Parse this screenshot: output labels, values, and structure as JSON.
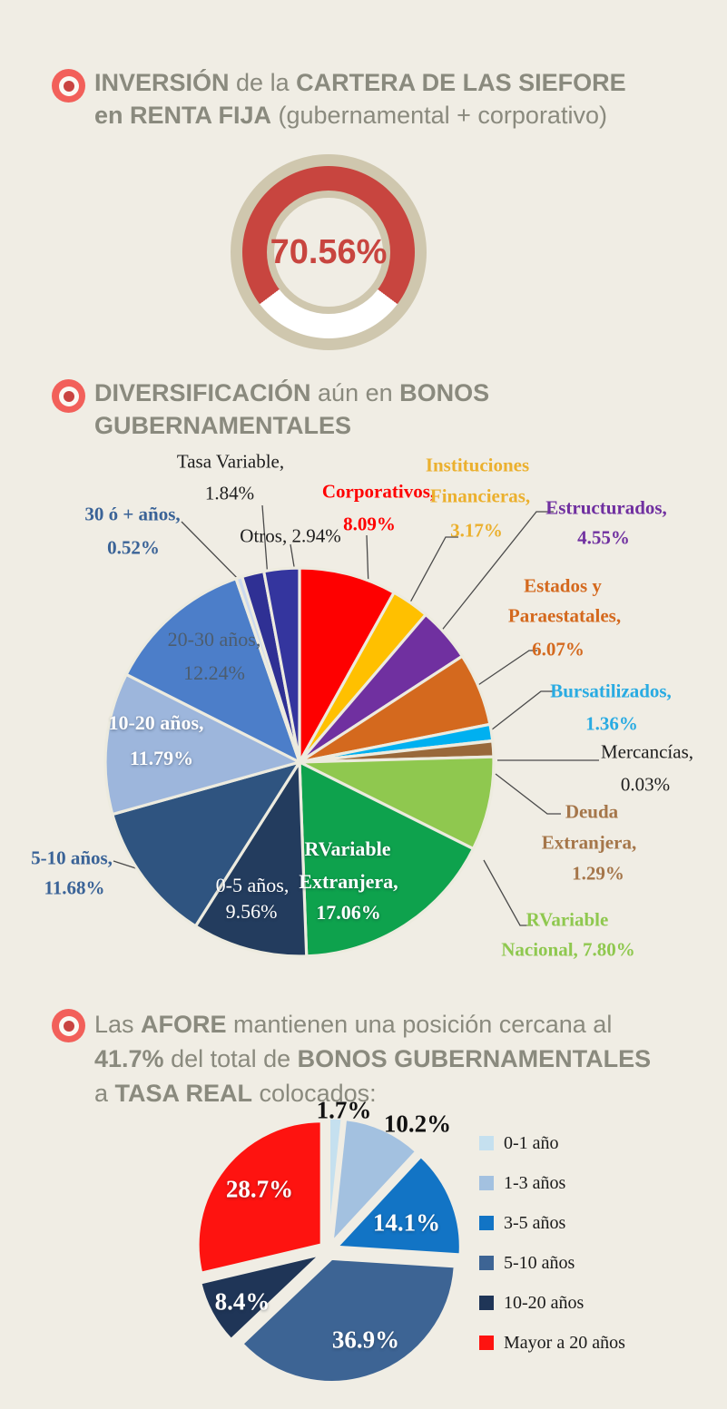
{
  "theme": {
    "background": "#F0EDE4",
    "heading_color": "#8A8A7E",
    "bullet_outer": "#F2605A",
    "bullet_inner_dot": "#C94440",
    "leader_line_color": "#4A4A4A",
    "slice_separator": "#EDEBDF"
  },
  "headers": [
    {
      "lines": [
        [
          {
            "t": "INVERSIÓN",
            "b": true
          },
          {
            "t": " de la ",
            "b": false
          },
          {
            "t": "CARTERA DE LAS SIEFORE",
            "b": true
          }
        ],
        [
          {
            "t": "en RENTA FIJA",
            "b": true
          },
          {
            "t": " (gubernamental + corporativo)",
            "b": false
          }
        ]
      ]
    },
    {
      "lines": [
        [
          {
            "t": "DIVERSIFICACIÓN",
            "b": true
          },
          {
            "t": " aún en ",
            "b": false
          },
          {
            "t": "BONOS",
            "b": true
          }
        ],
        [
          {
            "t": "GUBERNAMENTALES",
            "b": true
          }
        ]
      ]
    },
    {
      "lines": [
        [
          {
            "t": "Las ",
            "b": false
          },
          {
            "t": "AFORE",
            "b": true
          },
          {
            "t": " mantienen una posición cercana al",
            "b": false
          }
        ],
        [
          {
            "t": "41.7%",
            "b": true
          },
          {
            "t": " del total de ",
            "b": false
          },
          {
            "t": "BONOS GUBERNAMENTALES",
            "b": true
          }
        ],
        [
          {
            "t": "a ",
            "b": false
          },
          {
            "t": "TASA REAL",
            "b": true
          },
          {
            "t": " colocados:",
            "b": false
          }
        ]
      ]
    }
  ],
  "chart_data": [
    {
      "type": "donut",
      "title": "INVERSIÓN de la CARTERA DE LAS SIEFORE en RENTA FIJA (gubernamental + corporativo)",
      "value_pct": 70.56,
      "center_label": "70.56%",
      "fill_color": "#C8453F",
      "remainder_color": "#FFFFFF",
      "rim_color": "#CFC7AE"
    },
    {
      "type": "pie",
      "title": "DIVERSIFICACIÓN aún en BONOS GUBERNAMENTALES",
      "unit": "%",
      "start_angle_deg": 0,
      "direction": "clockwise",
      "slices": [
        {
          "key": "corporativos",
          "label_lines": [
            "Corporativos,",
            "8.09%"
          ],
          "value": 8.09,
          "color": "#FE0000",
          "label_color": "#FF0000"
        },
        {
          "key": "instituciones-financieras",
          "label_lines": [
            "Instituciones",
            "Financieras,",
            "3.17%"
          ],
          "value": 3.17,
          "color": "#FFC000",
          "label_color": "#EBB02E"
        },
        {
          "key": "estructurados",
          "label_lines": [
            "Estructurados,",
            "4.55%"
          ],
          "value": 4.55,
          "color": "#7030A0",
          "label_color": "#7030A0"
        },
        {
          "key": "estados-paraestatales",
          "label_lines": [
            "Estados y",
            "Paraestatales,",
            "6.07%"
          ],
          "value": 6.07,
          "color": "#D4691E",
          "label_color": "#D4691E"
        },
        {
          "key": "bursatilizados",
          "label_lines": [
            "Bursatilizados,",
            "1.36%"
          ],
          "value": 1.36,
          "color": "#00B0F0",
          "label_color": "#29ABE2"
        },
        {
          "key": "mercancias",
          "label_lines": [
            "Mercancías,",
            "0.03%"
          ],
          "value": 0.03,
          "color": "#8C8C8C",
          "label_color": "#1E1E1E"
        },
        {
          "key": "deuda-extranjera",
          "label_lines": [
            "Deuda",
            "Extranjera,",
            "1.29%"
          ],
          "value": 1.29,
          "color": "#99683A",
          "label_color": "#A5764A"
        },
        {
          "key": "rvariable-nacional",
          "label_lines": [
            "RVariable",
            "Nacional, 7.80%"
          ],
          "value": 7.8,
          "color": "#8FC84F",
          "label_color": "#8FC84F"
        },
        {
          "key": "rvariable-extranjera",
          "label_lines": [
            "RVariable",
            "Extranjera,",
            "17.06%"
          ],
          "value": 17.06,
          "color": "#0EA24D",
          "label_color": "#FFFFFF"
        },
        {
          "key": "0-5-anos",
          "label_lines": [
            "0-5 años,",
            "9.56%"
          ],
          "value": 9.56,
          "color": "#233C5E",
          "label_color": "#FFFFFF"
        },
        {
          "key": "5-10-anos",
          "label_lines": [
            "5-10 años,",
            "11.68%"
          ],
          "value": 11.68,
          "color": "#2F5480",
          "label_color": "#3A6397"
        },
        {
          "key": "10-20-anos",
          "label_lines": [
            "10-20 años,",
            "11.79%"
          ],
          "value": 11.79,
          "color": "#9DB6DC",
          "label_color": "#FFFFFF"
        },
        {
          "key": "20-30-anos",
          "label_lines": [
            "20-30 años,",
            "12.24%"
          ],
          "value": 12.24,
          "color": "#4C7EC9",
          "label_color": "#4C5D6F"
        },
        {
          "key": "30-o-mas-anos",
          "label_lines": [
            "30 ó + años,",
            "0.52%"
          ],
          "value": 0.52,
          "color": "#CBD9F0",
          "label_color": "#3A6397"
        },
        {
          "key": "tasa-variable",
          "label_lines": [
            "Tasa Variable,",
            "1.84%"
          ],
          "value": 1.84,
          "color": "#2F3094",
          "label_color": "#1E1E1E"
        },
        {
          "key": "otros",
          "label_lines": [
            "Otros, 2.94%"
          ],
          "value": 2.94,
          "color": "#34359E",
          "label_color": "#1E1E1E"
        }
      ]
    },
    {
      "type": "pie",
      "title": "Las AFORE mantienen una posición cercana al 41.7% del total de BONOS GUBERNAMENTALES a TASA REAL colocados:",
      "unit": "%",
      "start_angle_deg": 0,
      "direction": "clockwise",
      "exploded": true,
      "legend_position": "right",
      "slices": [
        {
          "key": "0-1-ano",
          "legend": "0-1 año",
          "label": "1.7%",
          "value": 1.7,
          "color": "#C5E0EF",
          "label_color": "#111111"
        },
        {
          "key": "1-3-anos",
          "legend": "1-3 años",
          "label": "10.2%",
          "value": 10.2,
          "color": "#A3C1E0",
          "label_color": "#111111"
        },
        {
          "key": "3-5-anos",
          "legend": "3-5 años",
          "label": "14.1%",
          "value": 14.1,
          "color": "#1274C5",
          "label_color": "#FFFFFF"
        },
        {
          "key": "5-10-anos",
          "legend": "5-10 años",
          "label": "36.9%",
          "value": 36.9,
          "color": "#3D6494",
          "label_color": "#FFFFFF"
        },
        {
          "key": "10-20-anos",
          "legend": "10-20 años",
          "label": "8.4%",
          "value": 8.4,
          "color": "#1F3557",
          "label_color": "#FFFFFF"
        },
        {
          "key": "mayor-20-anos",
          "legend": "Mayor a 20 años",
          "label": "28.7%",
          "value": 28.7,
          "color": "#FE1310",
          "label_color": "#FFFFFF"
        }
      ]
    }
  ]
}
